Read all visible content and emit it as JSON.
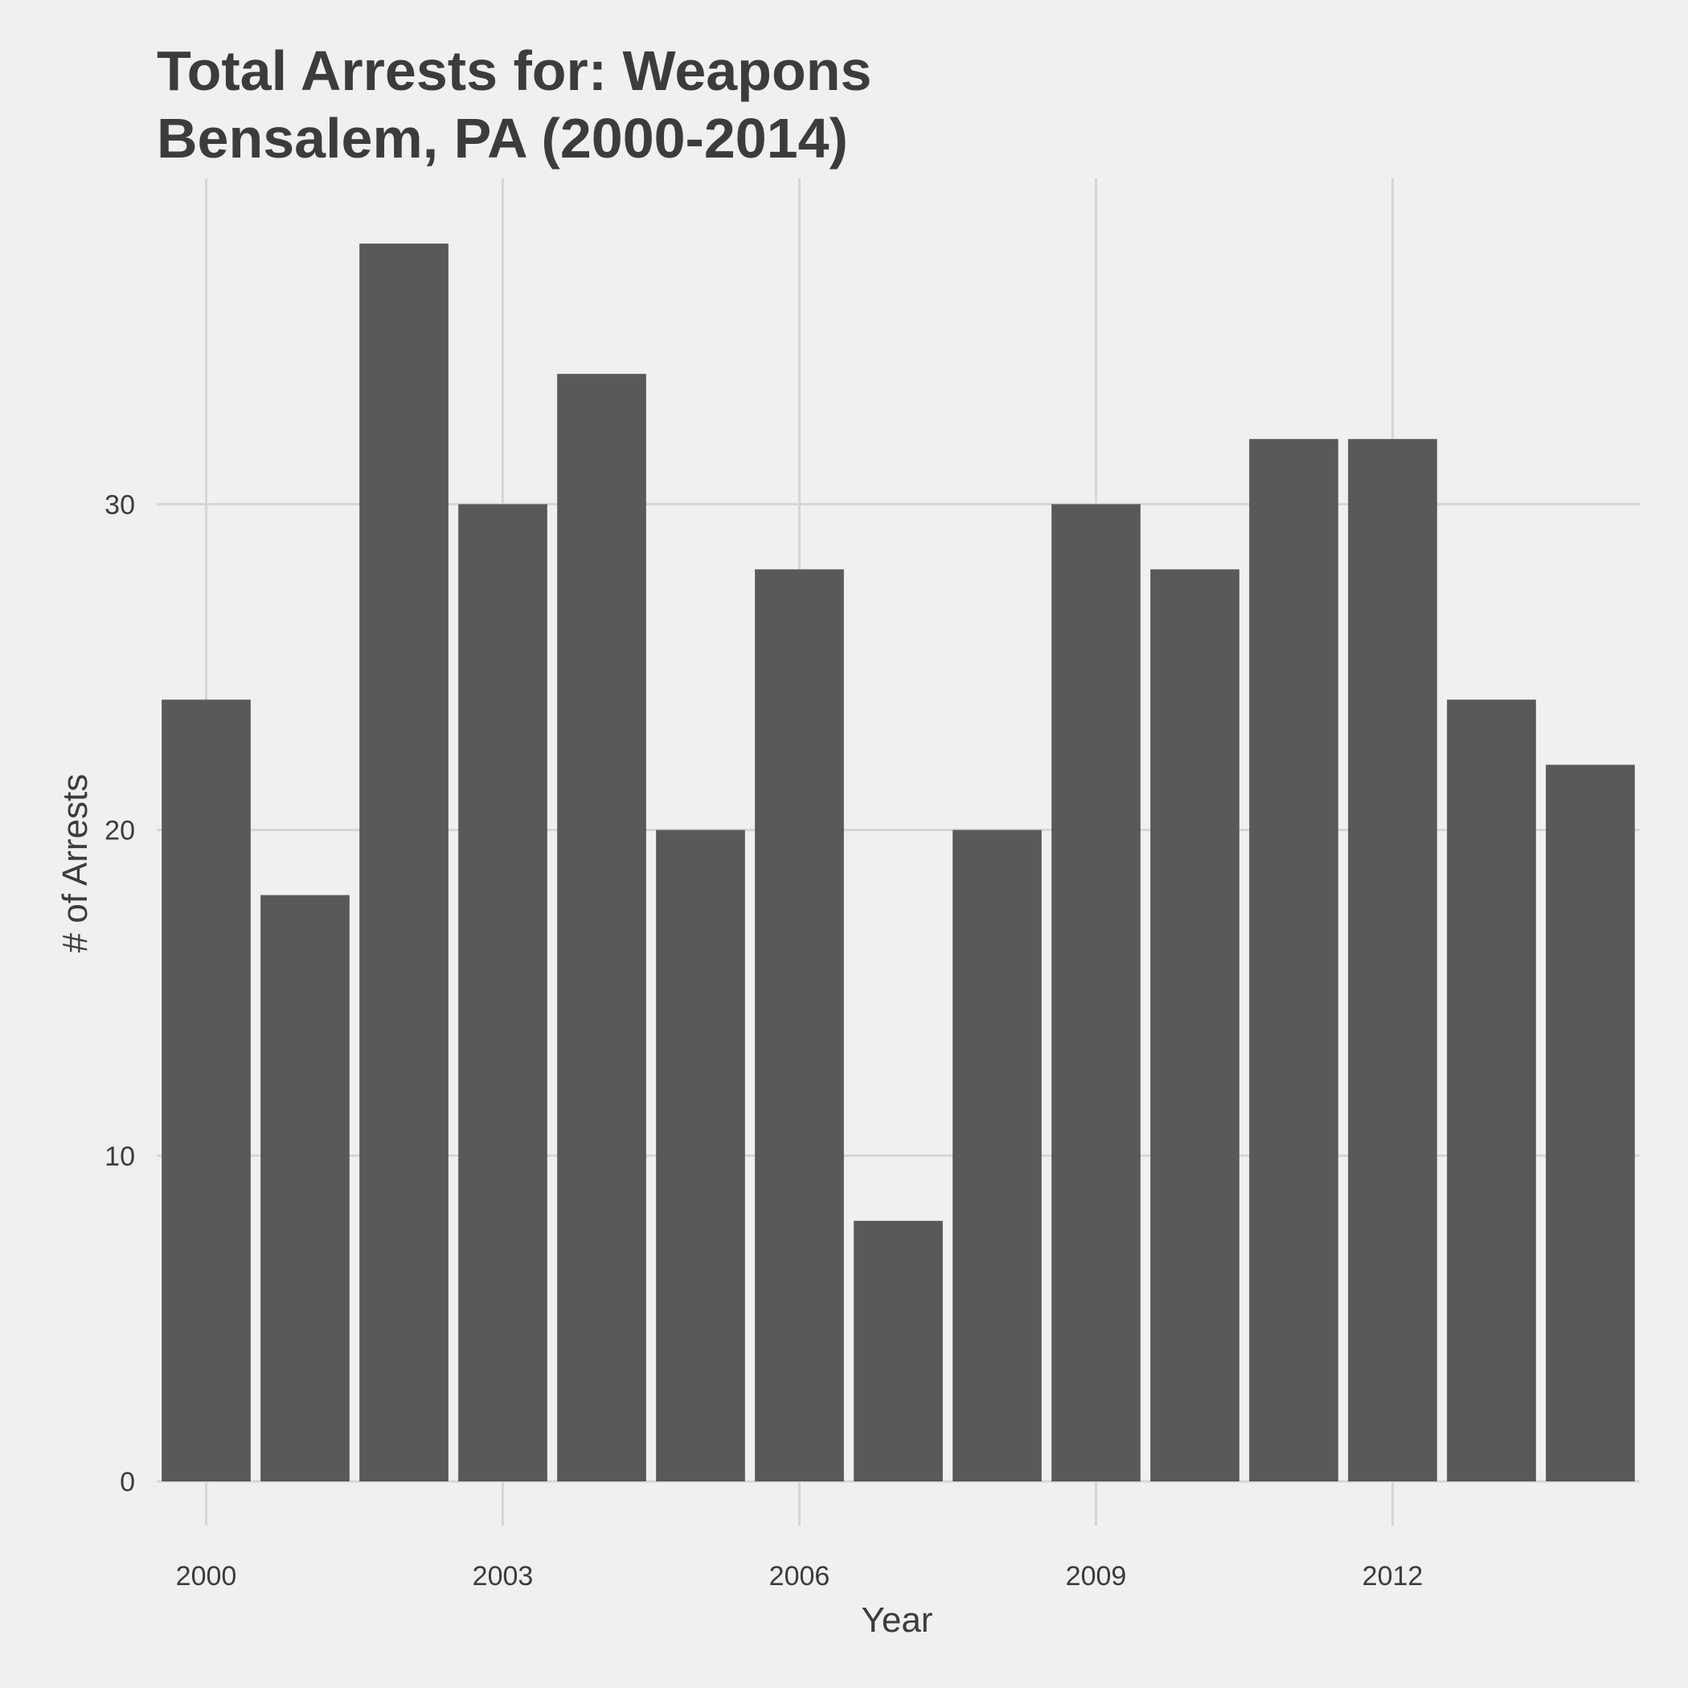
{
  "chart_data": {
    "type": "bar",
    "title": "Total Arrests for: Weapons",
    "subtitle": "Bensalem, PA (2000-2014)",
    "xlabel": "Year",
    "ylabel": "# of Arrests",
    "categories": [
      2000,
      2001,
      2002,
      2003,
      2004,
      2005,
      2006,
      2007,
      2008,
      2009,
      2010,
      2011,
      2012,
      2013,
      2014
    ],
    "values": [
      24,
      18,
      38,
      30,
      34,
      20,
      28,
      8,
      20,
      30,
      28,
      32,
      32,
      24,
      22
    ],
    "x_ticks": [
      2000,
      2003,
      2006,
      2009,
      2012
    ],
    "y_ticks": [
      0,
      10,
      20,
      30
    ],
    "ylim": [
      0,
      40
    ],
    "grid": true,
    "legend": "none",
    "colors": {
      "background": "#f0f0f0",
      "bar": "#595959",
      "grid": "#d6d6d6",
      "text": "#3c3c3c"
    }
  }
}
